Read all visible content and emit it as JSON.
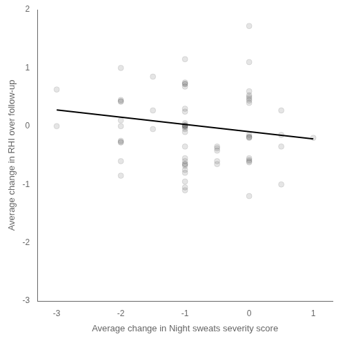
{
  "chart_data": {
    "type": "scatter",
    "xlabel": "Average change in Night sweats severity score",
    "ylabel": "Average change in RHI over follow-up",
    "series": [
      {
        "type": "scatter",
        "marker": "circle",
        "x": [
          -3.0,
          -3.0,
          -2.0,
          -2.0,
          -2.0,
          -2.0,
          -2.0,
          -2.0,
          -2.0,
          -2.0,
          -2.0,
          -2.0,
          -2.0,
          -1.5,
          -1.5,
          -1.5,
          -1.0,
          -1.0,
          -1.0,
          -1.0,
          -1.0,
          -1.0,
          -1.0,
          -1.0,
          -1.0,
          -1.0,
          -1.0,
          -1.0,
          -1.0,
          -1.0,
          -1.0,
          -1.0,
          -1.0,
          -1.0,
          -1.0,
          -1.0,
          -1.0,
          -1.0,
          -1.0,
          -1.0,
          -1.0,
          -1.0,
          -0.5,
          -0.5,
          -0.5,
          -0.5,
          -0.5,
          0.0,
          0.0,
          0.0,
          0.0,
          0.0,
          0.0,
          0.0,
          0.0,
          0.0,
          0.0,
          0.0,
          0.0,
          0.0,
          0.0,
          0.0,
          0.0,
          0.0,
          0.5,
          0.5,
          0.5,
          0.5,
          1.0
        ],
        "values": [
          0.63,
          0.0,
          1.0,
          0.45,
          0.43,
          0.42,
          0.1,
          0.0,
          -0.25,
          -0.27,
          -0.28,
          -0.6,
          -0.85,
          0.85,
          0.27,
          -0.05,
          1.15,
          0.75,
          0.73,
          0.72,
          0.68,
          0.3,
          0.25,
          0.05,
          0.0,
          0.0,
          -0.05,
          -0.1,
          -0.35,
          -0.55,
          -0.6,
          -0.65,
          -0.65,
          -0.68,
          -0.75,
          -0.8,
          -0.95,
          -1.05,
          -1.1,
          0.02,
          0.01,
          -0.02,
          -0.35,
          -0.38,
          -0.42,
          -0.6,
          -0.65,
          1.72,
          1.1,
          0.6,
          0.53,
          0.5,
          0.47,
          0.44,
          0.4,
          -0.15,
          -0.18,
          -0.19,
          -0.2,
          -0.55,
          -0.58,
          -0.6,
          -0.62,
          -1.2,
          0.27,
          -0.15,
          -0.35,
          -1.0,
          -0.2
        ]
      },
      {
        "type": "line",
        "line_style": "solid",
        "color": "black",
        "x": [
          -3.0,
          1.0
        ],
        "values": [
          0.28,
          -0.22
        ]
      }
    ],
    "xlim": [
      -3.3,
      1.3
    ],
    "ylim": [
      -3.0,
      2.0
    ],
    "xticks": [
      -3,
      -2,
      -1,
      0,
      1
    ],
    "yticks": [
      -3,
      -2,
      -1,
      0,
      1,
      2
    ],
    "grid": false
  }
}
